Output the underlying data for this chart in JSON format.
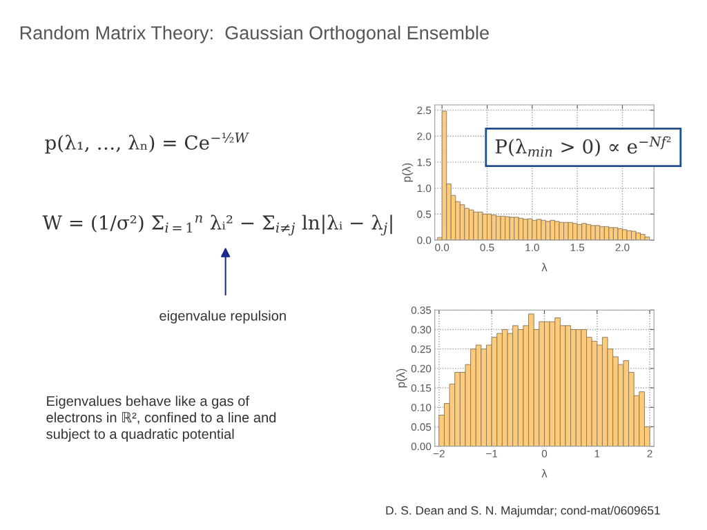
{
  "chart_data": [
    {
      "type": "histogram",
      "title": "Random Matrix Theory:  Gaussian Orthogonal Ensemble",
      "xlabel": "λ",
      "ylabel": "p(λ)",
      "color": "#fdcb7a",
      "bins": [
        -0.05,
        0.0,
        0.05,
        0.1,
        0.15,
        0.2,
        0.25,
        0.3,
        0.35,
        0.4,
        0.45,
        0.5,
        0.55,
        0.6,
        0.65,
        0.7,
        0.75,
        0.8,
        0.85,
        0.9,
        0.95,
        1.0,
        1.05,
        1.1,
        1.15,
        1.2,
        1.25,
        1.3,
        1.35,
        1.4,
        1.45,
        1.5,
        1.55,
        1.6,
        1.65,
        1.7,
        1.75,
        1.8,
        1.85,
        1.9,
        1.95,
        2.0,
        2.05,
        2.1,
        2.15,
        2.2,
        2.25,
        2.3
      ],
      "values": [
        0.05,
        2.48,
        1.08,
        0.86,
        0.74,
        0.68,
        0.61,
        0.58,
        0.54,
        0.54,
        0.5,
        0.5,
        0.48,
        0.46,
        0.46,
        0.45,
        0.44,
        0.44,
        0.42,
        0.4,
        0.41,
        0.38,
        0.4,
        0.38,
        0.36,
        0.38,
        0.36,
        0.34,
        0.34,
        0.34,
        0.32,
        0.3,
        0.32,
        0.3,
        0.28,
        0.28,
        0.26,
        0.26,
        0.24,
        0.24,
        0.22,
        0.2,
        0.18,
        0.17,
        0.14,
        0.11,
        0.06
      ],
      "xlim": [
        -0.08,
        2.35
      ],
      "ylim": [
        0,
        2.6
      ],
      "xticks": [
        {
          "value": 0,
          "label": "0.0"
        },
        0.5,
        {
          "value": 1,
          "label": "1.0"
        },
        1.5,
        {
          "value": 2,
          "label": "2.0"
        }
      ],
      "yticks": [
        {
          "value": 0,
          "label": "0.0"
        },
        0.5,
        {
          "value": 1,
          "label": "1.0"
        },
        1.5,
        {
          "value": 2,
          "label": "2.0"
        },
        2.5
      ],
      "grid": true,
      "annotations": [
        "P(λ$_{min}$ > 0) ∝ e$^{−Nf²}$",
        "p(λ₁, …, λₙ) = Ce$^{−½W}$",
        "W = (1/σ²) Σ$_{i=1}$$^{n}$ λᵢ² − Σ$_{i≠j}$ ln|λᵢ − λ$_{j}$|",
        "eigenvalue repulsion",
        "Eigenvalues behave like a gas of\nelectrons in ℝ², confined to a line and\nsubject to a quadratic potential"
      ]
    },
    {
      "type": "histogram",
      "xlabel": "λ",
      "ylabel": "p(λ)",
      "color": "#fdcb7a",
      "bins": [
        -2.0,
        -1.9,
        -1.8,
        -1.7,
        -1.6,
        -1.5,
        -1.4,
        -1.3,
        -1.2,
        -1.1,
        -1.0,
        -0.9,
        -0.8,
        -0.7,
        -0.6,
        -0.5,
        -0.4,
        -0.3,
        -0.2,
        -0.1,
        0.0,
        0.1,
        0.2,
        0.3,
        0.4,
        0.5,
        0.6,
        0.7,
        0.8,
        0.9,
        1.0,
        1.1,
        1.2,
        1.3,
        1.4,
        1.5,
        1.6,
        1.7,
        1.8,
        1.9,
        2.0
      ],
      "values": [
        0.08,
        0.11,
        0.16,
        0.19,
        0.19,
        0.21,
        0.25,
        0.26,
        0.25,
        0.26,
        0.28,
        0.29,
        0.3,
        0.29,
        0.31,
        0.3,
        0.31,
        0.34,
        0.3,
        0.32,
        0.32,
        0.32,
        0.33,
        0.31,
        0.31,
        0.3,
        0.3,
        0.3,
        0.28,
        0.27,
        0.26,
        0.28,
        0.25,
        0.23,
        0.21,
        0.22,
        0.19,
        0.13,
        0.14,
        0.05
      ],
      "xlim": [
        -2.08,
        2.08
      ],
      "ylim": [
        0,
        0.35
      ],
      "xticks": [
        {
          "value": -2,
          "label": "−2"
        },
        {
          "value": -1,
          "label": "−1"
        },
        0,
        1,
        2
      ],
      "yticks": [
        {
          "value": 0,
          "label": "0.00"
        },
        0.05,
        {
          "value": 0.1,
          "label": "0.10"
        },
        0.15,
        {
          "value": 0.2,
          "label": "0.20"
        },
        0.25,
        {
          "value": 0.3,
          "label": "0.30"
        },
        0.35
      ],
      "grid": true,
      "annotations": [
        "D. S. Dean and S. N. Majumdar; cond-mat/0609651"
      ]
    }
  ]
}
